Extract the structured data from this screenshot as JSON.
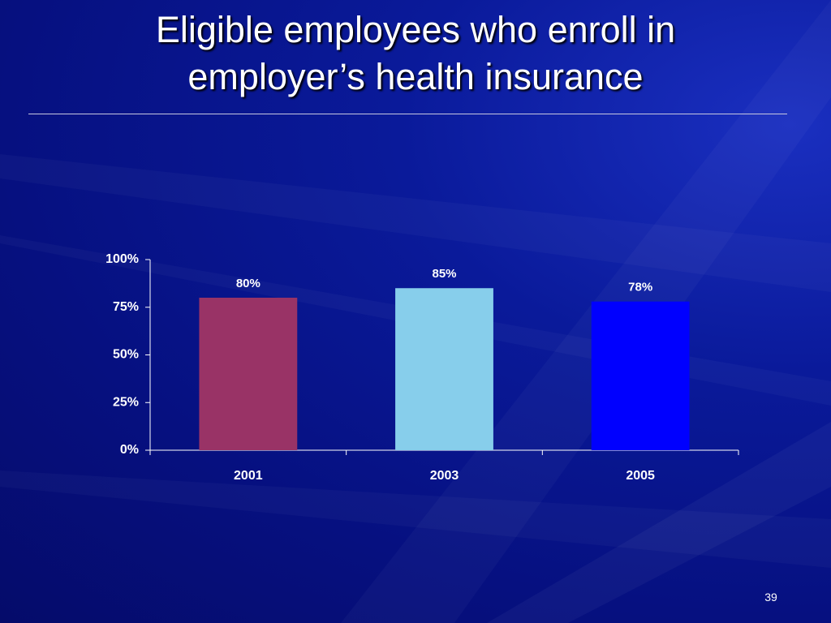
{
  "chart_data": {
    "type": "bar",
    "title": "Eligible employees who enroll in employer’s health insurance",
    "categories": [
      "2001",
      "2003",
      "2005"
    ],
    "values": [
      80,
      85,
      78
    ],
    "value_labels": [
      "80%",
      "85%",
      "78%"
    ],
    "colors": [
      "#993366",
      "#87ceeb",
      "#0000ff"
    ],
    "ylim": [
      0,
      100
    ],
    "yticks": [
      {
        "value": 0,
        "label": "0%"
      },
      {
        "value": 25,
        "label": "25%"
      },
      {
        "value": 50,
        "label": "50%"
      },
      {
        "value": 75,
        "label": "75%"
      },
      {
        "value": 100,
        "label": "100%"
      }
    ]
  },
  "page_number": "39"
}
